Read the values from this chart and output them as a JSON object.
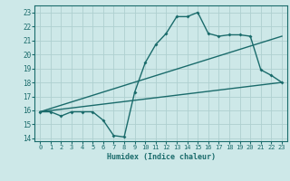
{
  "xlabel": "Humidex (Indice chaleur)",
  "ylabel": "",
  "bg_color": "#cde8e8",
  "line_color": "#1a6b6b",
  "grid_color": "#aed0d0",
  "xlim": [
    -0.5,
    23.5
  ],
  "ylim": [
    13.8,
    23.5
  ],
  "xticks": [
    0,
    1,
    2,
    3,
    4,
    5,
    6,
    7,
    8,
    9,
    10,
    11,
    12,
    13,
    14,
    15,
    16,
    17,
    18,
    19,
    20,
    21,
    22,
    23
  ],
  "yticks": [
    14,
    15,
    16,
    17,
    18,
    19,
    20,
    21,
    22,
    23
  ],
  "line1_x": [
    0,
    1,
    2,
    3,
    4,
    5,
    6,
    7,
    8,
    9,
    10,
    11,
    12,
    13,
    14,
    15,
    16,
    17,
    18,
    19,
    20,
    21,
    22,
    23
  ],
  "line1_y": [
    15.9,
    15.9,
    15.6,
    15.9,
    15.9,
    15.9,
    15.3,
    14.2,
    14.1,
    17.3,
    19.4,
    20.7,
    21.5,
    22.7,
    22.7,
    23.0,
    21.5,
    21.3,
    21.4,
    21.4,
    21.3,
    18.9,
    18.5,
    18.0
  ],
  "line2_x": [
    0,
    23
  ],
  "line2_y": [
    15.9,
    21.3
  ],
  "line3_x": [
    0,
    23
  ],
  "line3_y": [
    15.9,
    18.0
  ]
}
